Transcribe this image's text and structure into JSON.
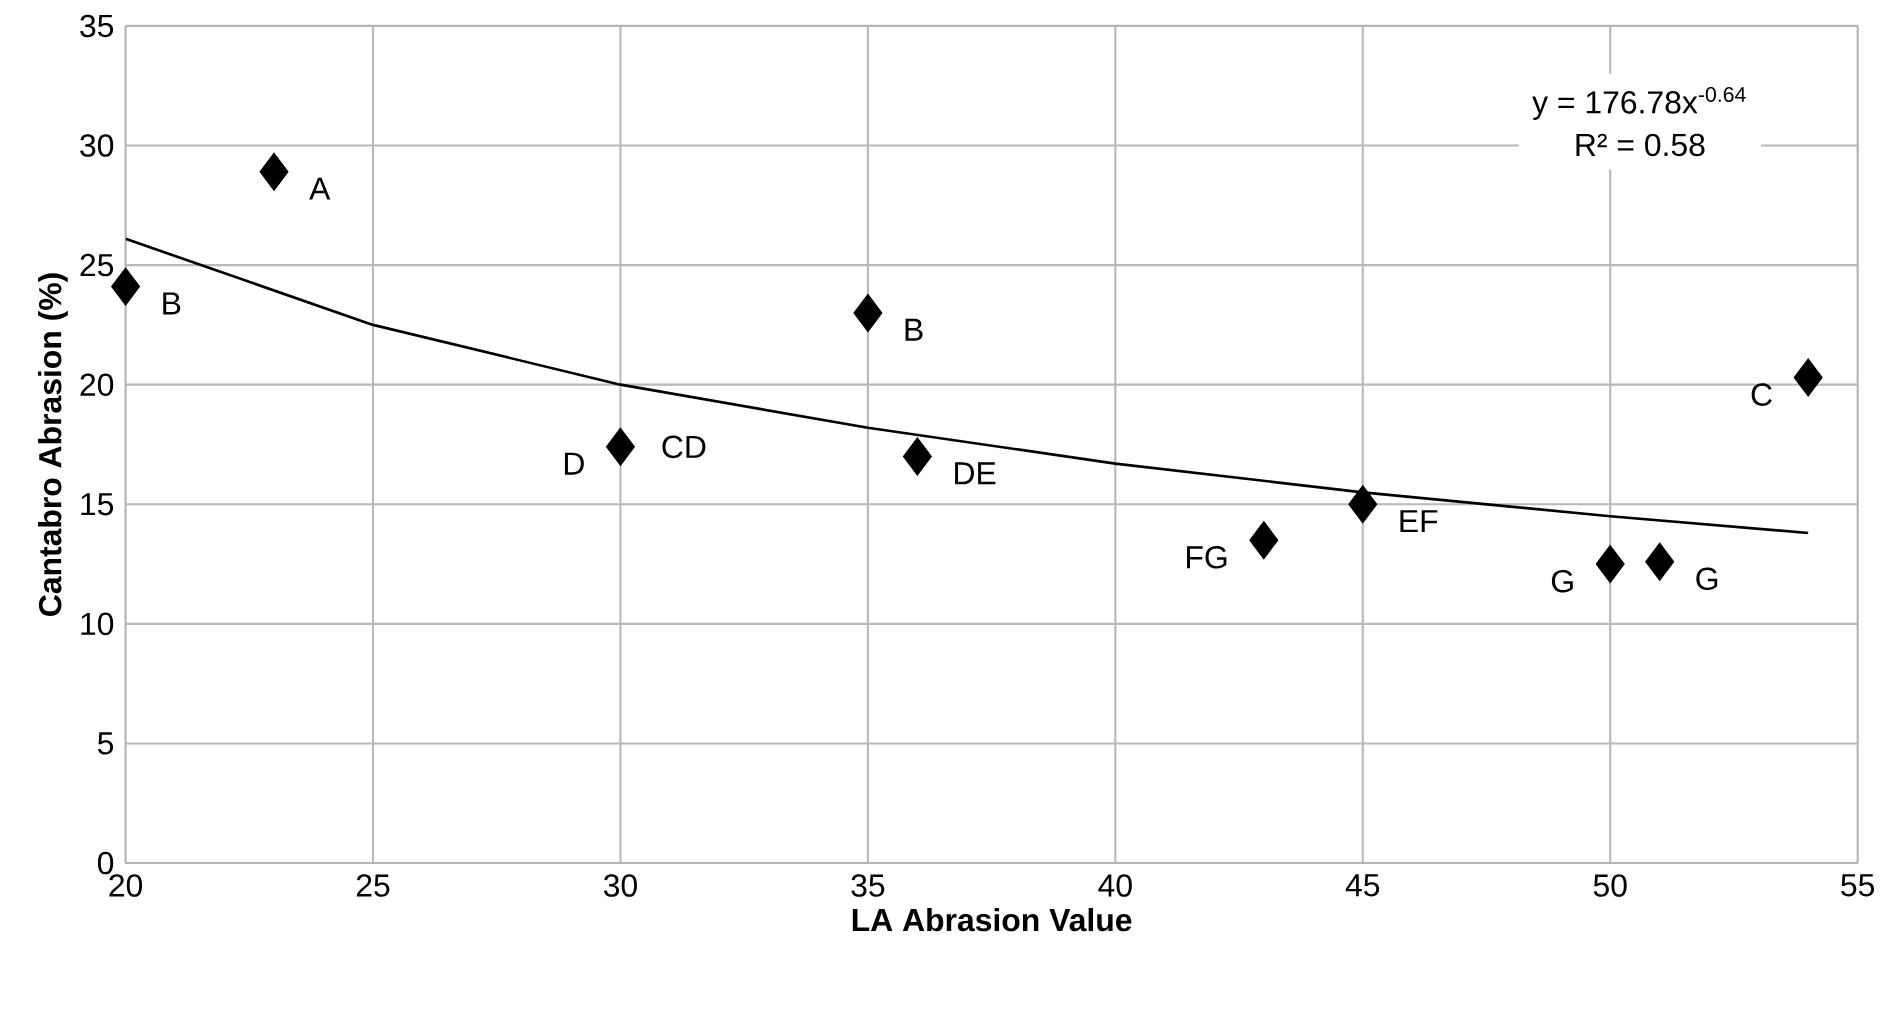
{
  "chart_data": {
    "type": "scatter",
    "xlabel": "LA Abrasion Value",
    "ylabel": "Cantabro Abrasion (%)",
    "xlim": [
      20,
      55
    ],
    "xticks": [
      20,
      25,
      30,
      35,
      40,
      45,
      50,
      55
    ],
    "ylim": [
      0,
      35
    ],
    "yticks": [
      0,
      5,
      10,
      15,
      20,
      25,
      30,
      35
    ],
    "grid": true,
    "marker": "diamond",
    "series": [
      {
        "color": "#000000",
        "x": [
          20,
          23,
          35,
          30,
          36,
          43,
          45,
          50,
          51,
          54
        ],
        "values": [
          24.1,
          28.9,
          23.0,
          17.4,
          17.0,
          13.5,
          15.0,
          12.5,
          12.6,
          20.3
        ]
      },
      {
        "type": "line",
        "color": "#000000",
        "marker": "none",
        "x": [
          20,
          25,
          30,
          35,
          40,
          45,
          50,
          54
        ],
        "values": [
          26.1,
          22.5,
          20.0,
          18.2,
          16.7,
          15.5,
          14.5,
          13.8
        ]
      }
    ],
    "annotations": [
      {
        "text": "A",
        "x": 23,
        "y": 28.9
      },
      {
        "text": "B",
        "x": 20,
        "y": 24.1
      },
      {
        "text": "B",
        "x": 35,
        "y": 23.0
      },
      {
        "text": "D",
        "x": 30,
        "y": 17.4
      },
      {
        "text": "CD",
        "x": 30,
        "y": 17.4
      },
      {
        "text": "DE",
        "x": 36,
        "y": 17.0
      },
      {
        "text": "FG",
        "x": 43,
        "y": 13.5
      },
      {
        "text": "EF",
        "x": 45,
        "y": 15.0
      },
      {
        "text": "G",
        "x": 50,
        "y": 12.5
      },
      {
        "text": "G",
        "x": 51,
        "y": 12.6
      },
      {
        "text": "C",
        "x": 54,
        "y": 20.3
      },
      "y = 176.78x$^{-0.64}$",
      "R² = 0.58"
    ]
  }
}
